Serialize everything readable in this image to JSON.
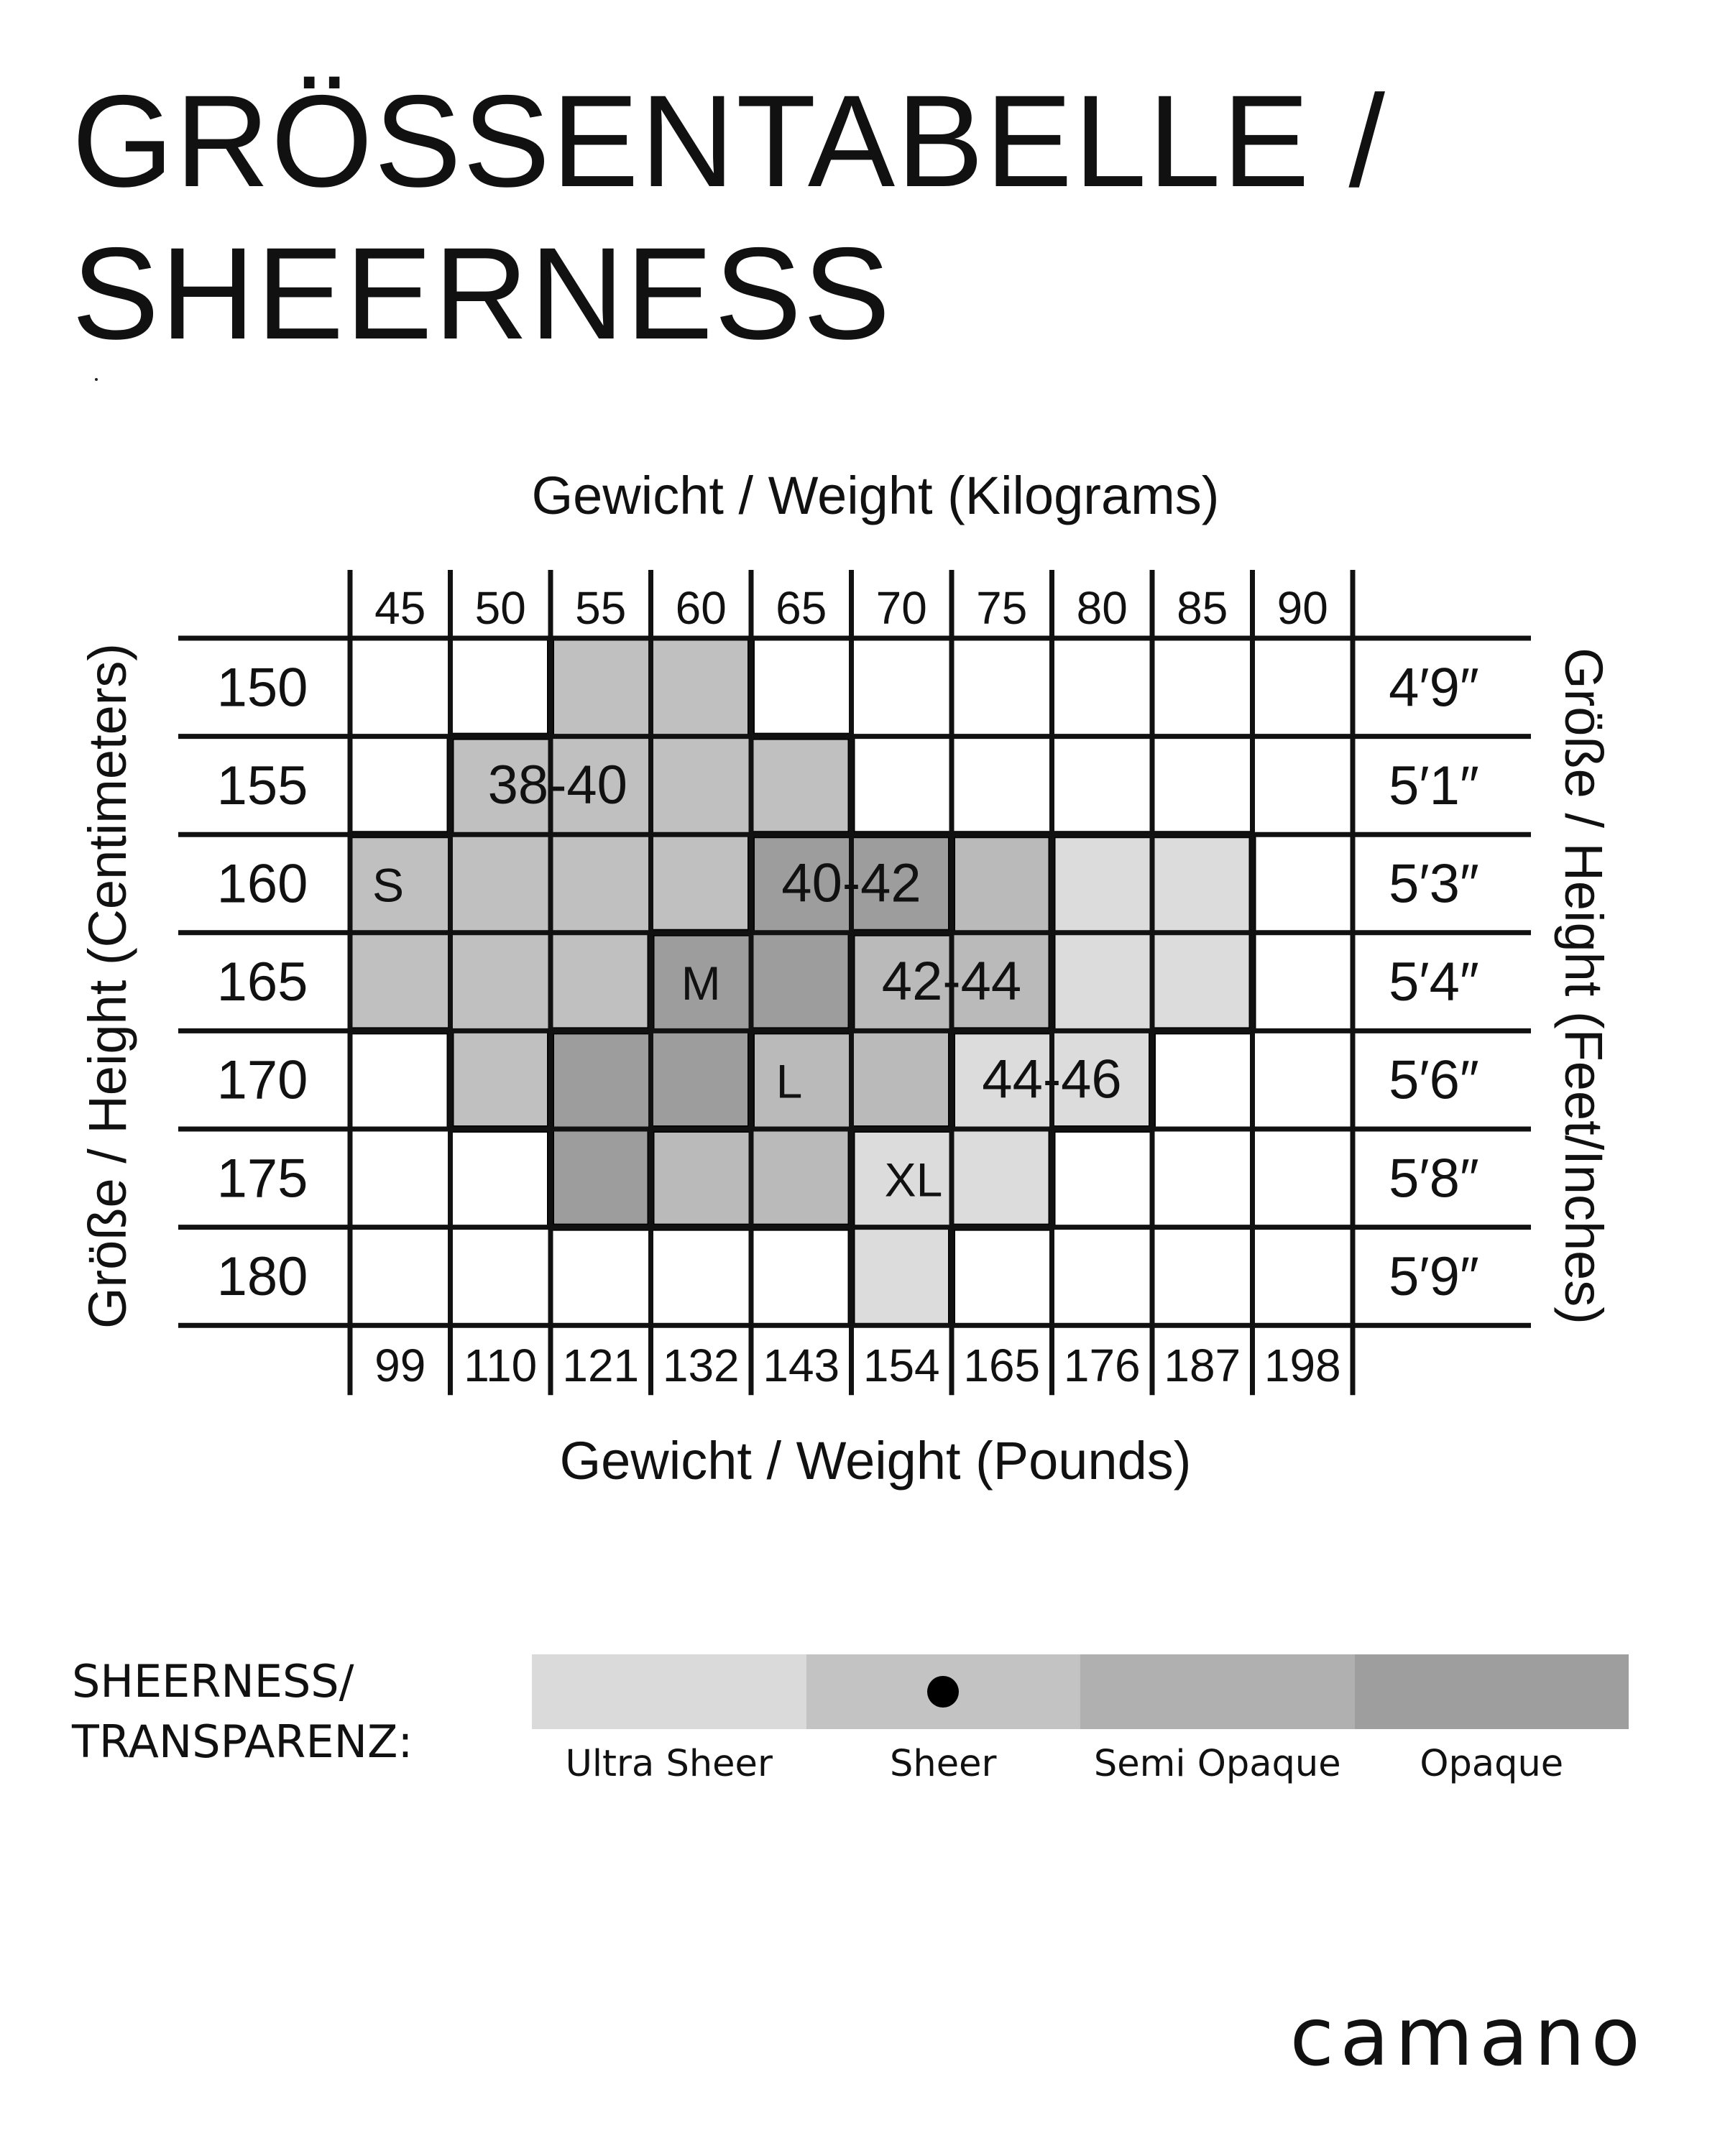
{
  "title": {
    "line1": "GRÖSSENTABELLE /",
    "line2": "SHEERNESS"
  },
  "chart_data": {
    "type": "table",
    "title": "GRÖSSENTABELLE / SHEERNESS",
    "top_axis_label": "Gewicht / Weight (Kilograms)",
    "bottom_axis_label": "Gewicht / Weight (Pounds)",
    "left_axis_label": "Größe / Height (Centimeters)",
    "right_axis_label": "Größe / Height  (Feet/Inches)",
    "weight_kg": [
      "45",
      "50",
      "55",
      "60",
      "65",
      "70",
      "75",
      "80",
      "85",
      "90"
    ],
    "weight_lb": [
      "99",
      "110",
      "121",
      "132",
      "143",
      "154",
      "165",
      "176",
      "187",
      "198"
    ],
    "height_cm": [
      "150",
      "155",
      "160",
      "165",
      "170",
      "175",
      "180"
    ],
    "height_ft": [
      "4′9″",
      "5′1″",
      "5′3″",
      "5′4″",
      "5′6″",
      "5′8″",
      "5′9″"
    ],
    "sizes": [
      {
        "size": "S",
        "eu": "38-40",
        "color": "#c0c0c0",
        "cells": [
          [
            0,
            2
          ],
          [
            0,
            3
          ],
          [
            1,
            1
          ],
          [
            1,
            2
          ],
          [
            1,
            3
          ],
          [
            1,
            4
          ],
          [
            2,
            0
          ],
          [
            2,
            1
          ],
          [
            2,
            2
          ],
          [
            2,
            3
          ],
          [
            3,
            0
          ],
          [
            3,
            1
          ],
          [
            3,
            2
          ],
          [
            4,
            1
          ],
          [
            4,
            2
          ]
        ]
      },
      {
        "size": "M",
        "eu": "40-42",
        "color": "#9d9d9d",
        "cells": [
          [
            2,
            4
          ],
          [
            2,
            5
          ],
          [
            3,
            3
          ],
          [
            3,
            4
          ],
          [
            4,
            2
          ],
          [
            4,
            3
          ],
          [
            5,
            2
          ]
        ]
      },
      {
        "size": "L",
        "eu": "42-44",
        "color": "#bababa",
        "cells": [
          [
            2,
            6
          ],
          [
            3,
            5
          ],
          [
            3,
            6
          ],
          [
            4,
            4
          ],
          [
            4,
            5
          ],
          [
            5,
            3
          ],
          [
            5,
            4
          ]
        ]
      },
      {
        "size": "XL",
        "eu": "44-46",
        "color": "#dcdcdc",
        "cells": [
          [
            2,
            7
          ],
          [
            2,
            8
          ],
          [
            3,
            7
          ],
          [
            3,
            8
          ],
          [
            4,
            6
          ],
          [
            4,
            7
          ],
          [
            5,
            5
          ],
          [
            5,
            6
          ],
          [
            6,
            5
          ]
        ]
      }
    ]
  },
  "legend": {
    "heading_line1": "SHEERNESS/",
    "heading_line2": "TRANSPARENZ:",
    "items": [
      {
        "label": "Ultra Sheer",
        "color": "#dadada",
        "selected": false
      },
      {
        "label": "Sheer",
        "color": "#c3c3c3",
        "selected": true
      },
      {
        "label": "Semi Opaque",
        "color": "#b0b0b0",
        "selected": false
      },
      {
        "label": "Opaque",
        "color": "#9e9e9e",
        "selected": false
      }
    ]
  },
  "brand": "camano"
}
